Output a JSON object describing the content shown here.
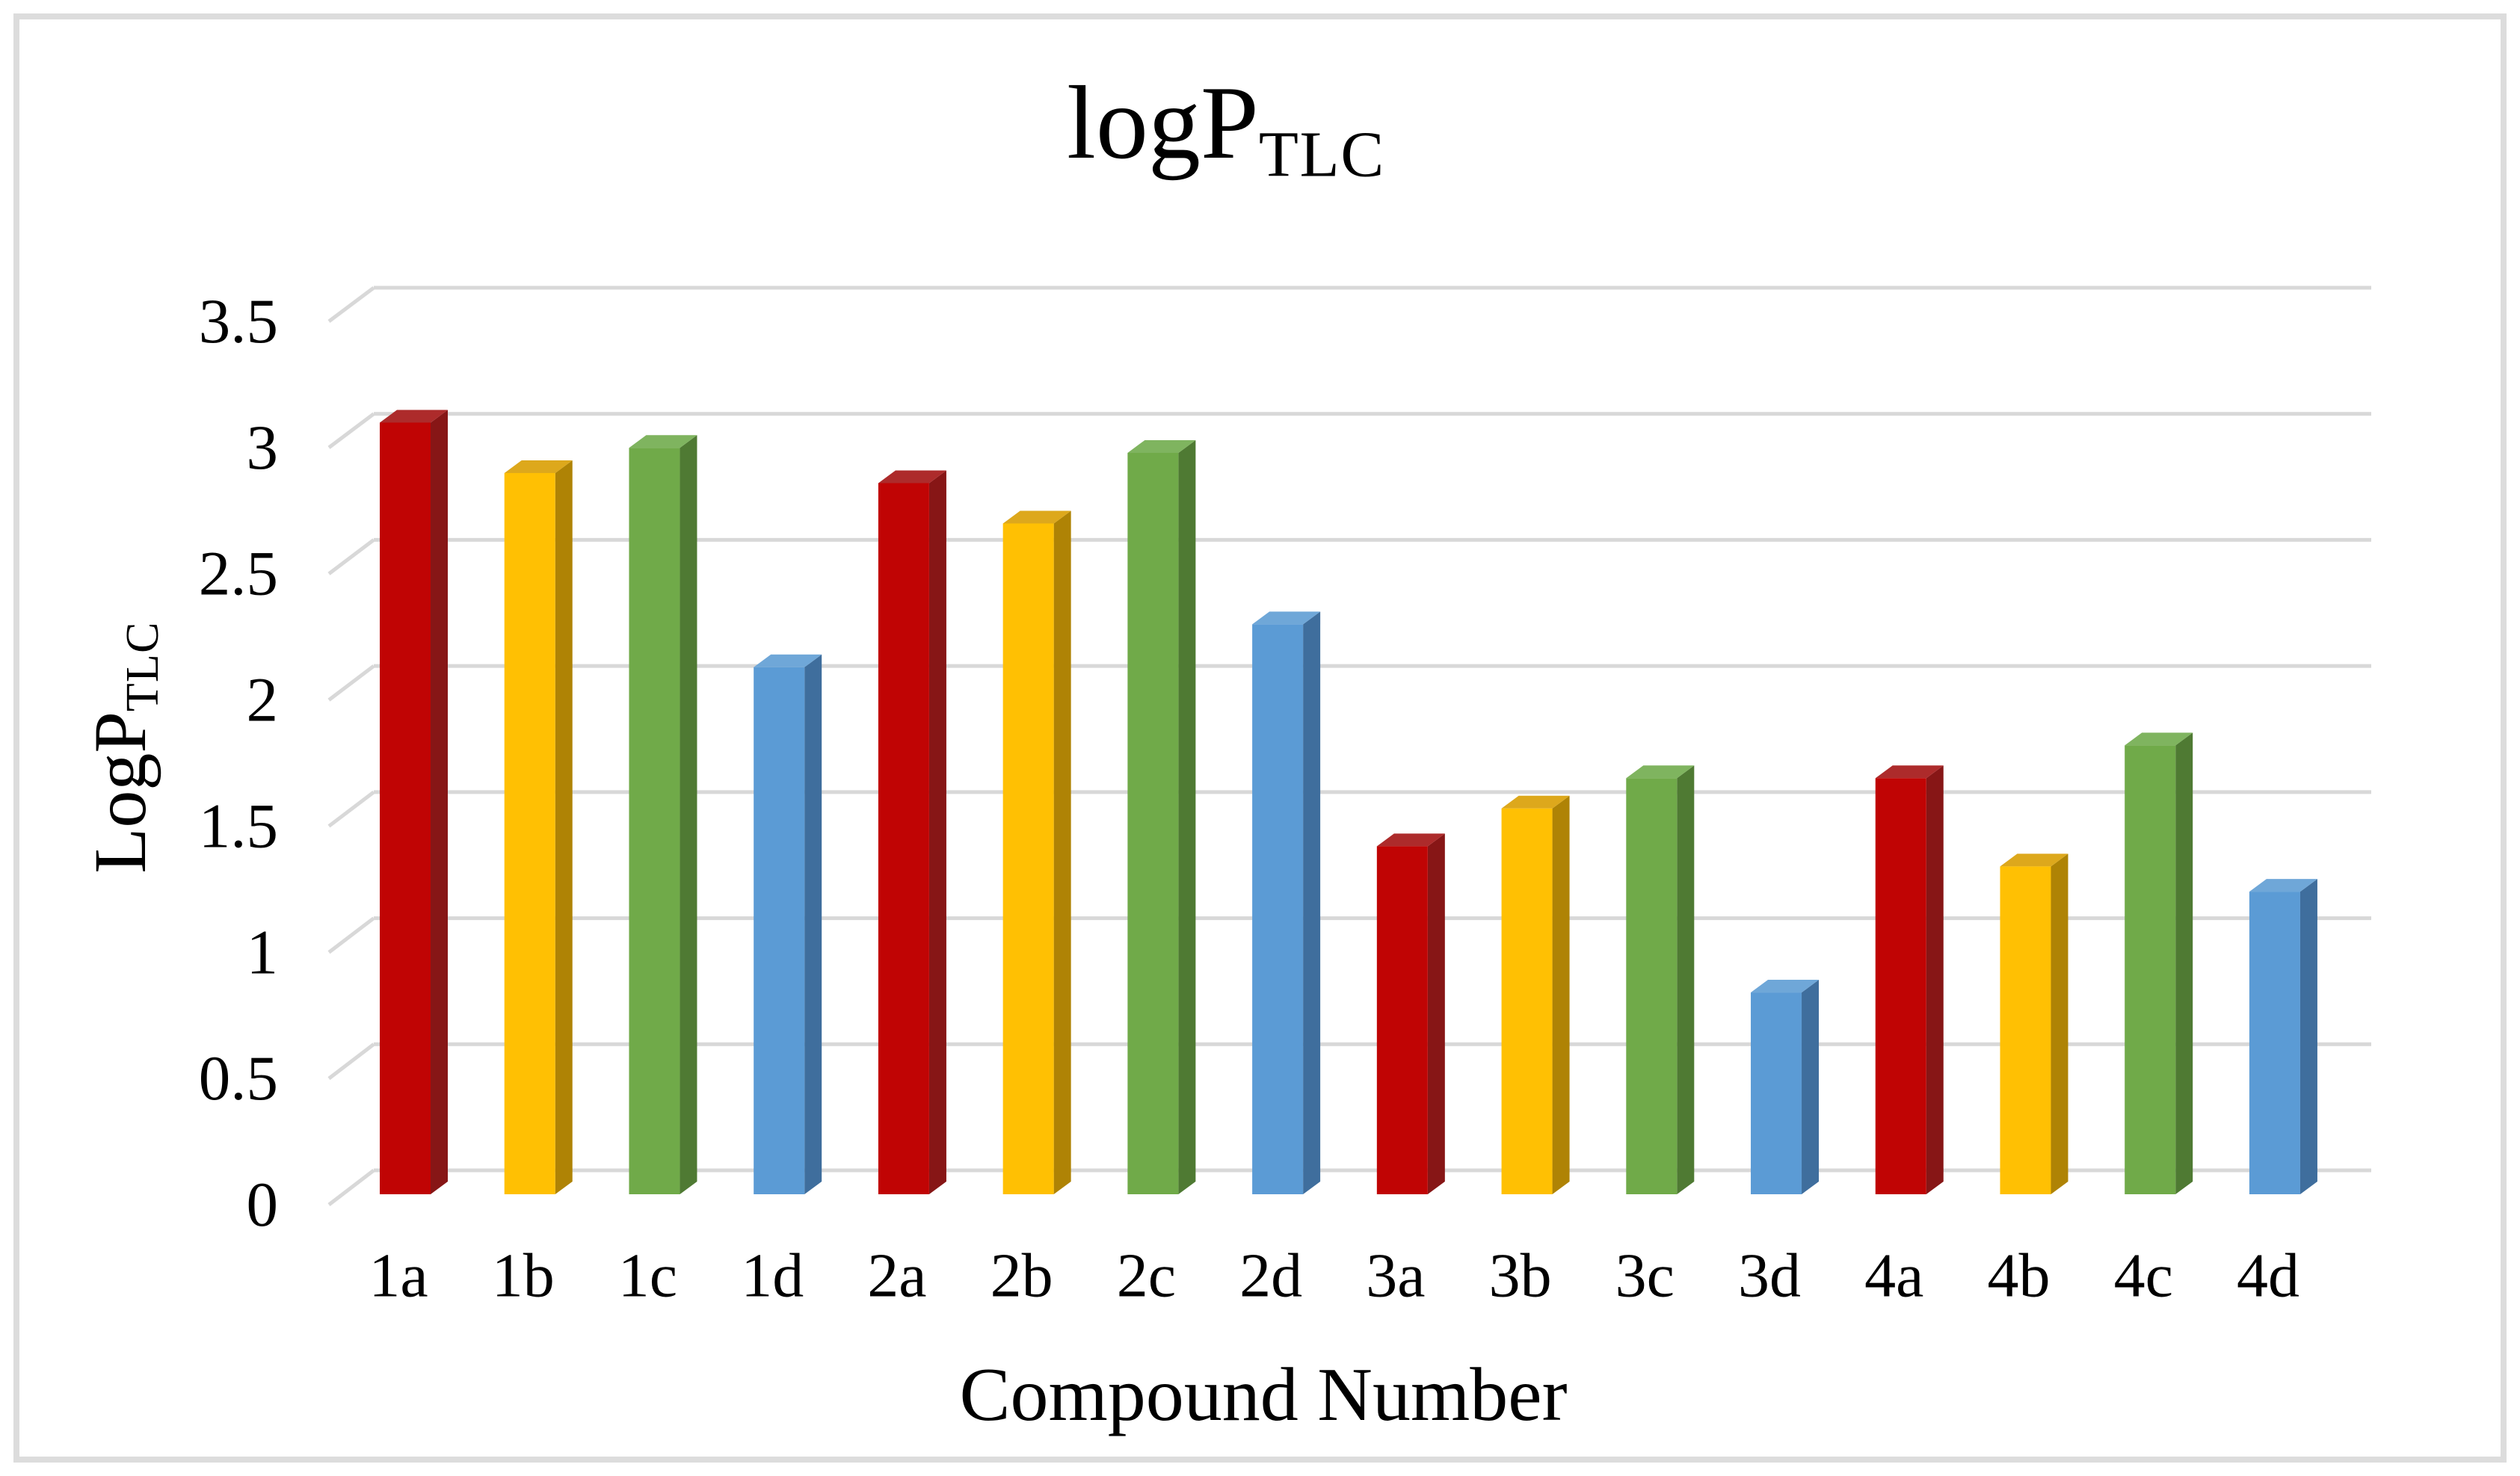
{
  "figure": {
    "background_color": "#ffffff",
    "border_color": "#dcdcdc",
    "text_color": "#000000",
    "gridline_color": "#d8d8d8"
  },
  "chart_data": {
    "type": "bar",
    "projection": "3d-column",
    "title_main": "logP",
    "title_sub": "TLC",
    "xlabel": "Compound Number",
    "ylabel_main": "LogP",
    "ylabel_sub": "TLC",
    "categories": [
      "1a",
      "1b",
      "1c",
      "1d",
      "2a",
      "2b",
      "2c",
      "2d",
      "3a",
      "3b",
      "3c",
      "3d",
      "4a",
      "4b",
      "4c",
      "4d"
    ],
    "values": [
      3.06,
      2.86,
      2.96,
      2.09,
      2.82,
      2.66,
      2.94,
      2.26,
      1.38,
      1.53,
      1.65,
      0.8,
      1.65,
      1.3,
      1.78,
      1.2
    ],
    "ylim": [
      0,
      3.5
    ],
    "ytick_step": 0.5,
    "ytick_labels": [
      "0",
      "0.5",
      "1",
      "1.5",
      "2",
      "2.5",
      "3",
      "3.5"
    ],
    "grid": true,
    "legend_position": "none",
    "series_palette": {
      "a": {
        "name": "red",
        "front": "#c00404",
        "top": "#ad2b2b",
        "side": "#871616"
      },
      "b": {
        "name": "gold",
        "front": "#ffc003",
        "top": "#dda81c",
        "side": "#af8305"
      },
      "c": {
        "name": "green",
        "front": "#70aa49",
        "top": "#7fb45f",
        "side": "#4f7a33"
      },
      "d": {
        "name": "blue",
        "front": "#5b9bd5",
        "top": "#6fa7d8",
        "side": "#3f6e9d"
      }
    }
  }
}
